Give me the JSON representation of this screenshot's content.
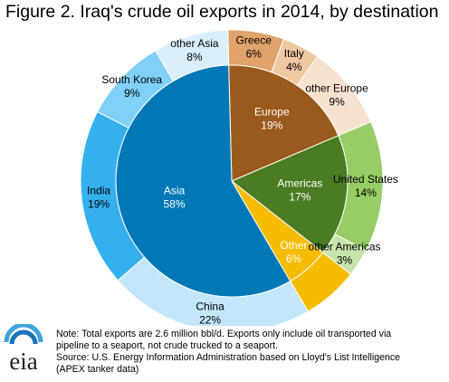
{
  "title": "Figure 2. Iraq's crude oil exports in 2014, by destination",
  "logo_text": "eia",
  "notes": [
    "Note: Total exports are 2.6 million bbl/d. Exports only include oil transported via",
    "pipeline to a seaport, not crude trucked to a seaport.",
    "Source: U.S. Energy Information Administration based on Lloyd's List Intelligence",
    "(APEX tanker data)"
  ],
  "chart_data": {
    "type": "pie",
    "subtype": "nested-donut",
    "inner": [
      {
        "name": "Europe",
        "value": 19,
        "label": "19%",
        "color": "#9b5a1d",
        "text_color": "#ffffff"
      },
      {
        "name": "Americas",
        "value": 17,
        "label": "17%",
        "color": "#4b7b23",
        "text_color": "#ffffff"
      },
      {
        "name": "Other",
        "value": 6,
        "label": "6%",
        "color": "#f6bc00",
        "text_color": "#ffffff"
      },
      {
        "name": "Asia",
        "value": 58,
        "label": "58%",
        "color": "#0077b6",
        "text_color": "#ffffff"
      }
    ],
    "outer": [
      {
        "name": "Greece",
        "value": 6,
        "label": "6%",
        "color": "#dfa36b",
        "text_color": "#000000"
      },
      {
        "name": "Italy",
        "value": 4,
        "label": "4%",
        "color": "#efc8a2",
        "text_color": "#000000"
      },
      {
        "name": "other Europe",
        "value": 9,
        "label": "9%",
        "color": "#f7e2cf",
        "text_color": "#000000"
      },
      {
        "name": "United States",
        "value": 14,
        "label": "14%",
        "color": "#97cc66",
        "text_color": "#000000"
      },
      {
        "name": "other Americas",
        "value": 3,
        "label": "3%",
        "color": "#c8e4ad",
        "text_color": "#000000"
      },
      {
        "name": "Other",
        "value": 6,
        "label": "6%",
        "color": "#f6bc00",
        "text_color": "#ffffff"
      },
      {
        "name": "China",
        "value": 22,
        "label": "22%",
        "color": "#c4e6fa",
        "text_color": "#000000"
      },
      {
        "name": "India",
        "value": 19,
        "label": "19%",
        "color": "#34b0ef",
        "text_color": "#000000"
      },
      {
        "name": "South Korea",
        "value": 9,
        "label": "9%",
        "color": "#80d0f8",
        "text_color": "#000000"
      },
      {
        "name": "other Asia",
        "value": 8,
        "label": "8%",
        "color": "#d9f0fc",
        "text_color": "#000000"
      }
    ]
  }
}
